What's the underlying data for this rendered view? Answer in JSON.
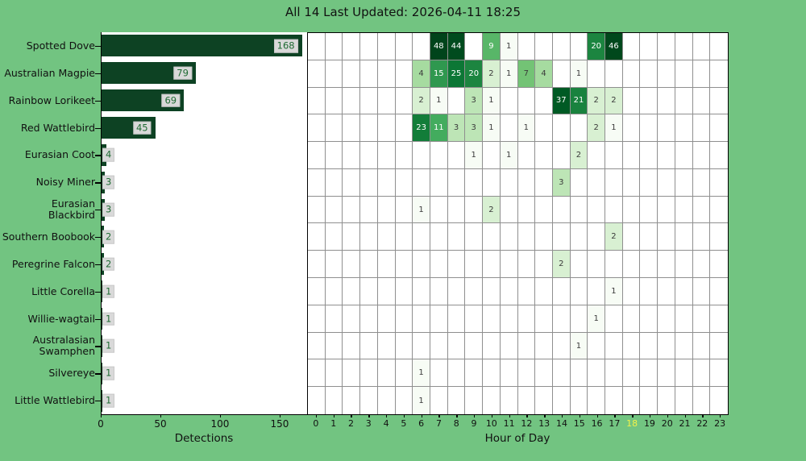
{
  "title": "All 14 Last Updated: 2026-04-11 18:25",
  "colors": {
    "background": "#72c481",
    "bar": "#0d4223",
    "value_label_box": "#d9d9d9",
    "value_label_text": "#1f6b33",
    "grid": "#8f8f8f",
    "frame": "#000000",
    "highlight_hour": "#f2f24a",
    "cell_text_dark": "#3a3a3a",
    "cell_text_light": "#ffffff"
  },
  "chart_data": [
    {
      "id": "detections-bar",
      "type": "bar",
      "orientation": "horizontal",
      "xlabel": "Detections",
      "xticks": [
        0,
        50,
        100,
        150
      ],
      "xlim": [
        0,
        173
      ],
      "categories": [
        "Spotted Dove",
        "Australian Magpie",
        "Rainbow Lorikeet",
        "Red Wattlebird",
        "Eurasian Coot",
        "Noisy Miner",
        "Eurasian\nBlackbird",
        "Southern Boobook",
        "Peregrine Falcon",
        "Little Corella",
        "Willie-wagtail",
        "Australasian\nSwamphen",
        "Silvereye",
        "Little Wattlebird"
      ],
      "values": [
        168,
        79,
        69,
        45,
        4,
        3,
        3,
        2,
        2,
        1,
        1,
        1,
        1,
        1
      ]
    },
    {
      "id": "hourly-heatmap",
      "type": "heatmap",
      "xlabel": "Hour of Day",
      "x": [
        0,
        1,
        2,
        3,
        4,
        5,
        6,
        7,
        8,
        9,
        10,
        11,
        12,
        13,
        14,
        15,
        16,
        17,
        18,
        19,
        20,
        21,
        22,
        23
      ],
      "highlighted_x": 18,
      "colormap": "Greens",
      "norm": "log",
      "vmin": 1,
      "vmax": 48,
      "rows": [
        "Spotted Dove",
        "Australian Magpie",
        "Rainbow Lorikeet",
        "Red Wattlebird",
        "Eurasian Coot",
        "Noisy Miner",
        "Eurasian Blackbird",
        "Southern Boobook",
        "Peregrine Falcon",
        "Little Corella",
        "Willie-wagtail",
        "Australasian Swamphen",
        "Silvereye",
        "Little Wattlebird"
      ],
      "cells": [
        {
          "row": 0,
          "hour": 7,
          "value": 48
        },
        {
          "row": 0,
          "hour": 8,
          "value": 44
        },
        {
          "row": 0,
          "hour": 10,
          "value": 9
        },
        {
          "row": 0,
          "hour": 11,
          "value": 1
        },
        {
          "row": 0,
          "hour": 16,
          "value": 20
        },
        {
          "row": 0,
          "hour": 17,
          "value": 46
        },
        {
          "row": 1,
          "hour": 6,
          "value": 4
        },
        {
          "row": 1,
          "hour": 7,
          "value": 15
        },
        {
          "row": 1,
          "hour": 8,
          "value": 25
        },
        {
          "row": 1,
          "hour": 9,
          "value": 20
        },
        {
          "row": 1,
          "hour": 10,
          "value": 2
        },
        {
          "row": 1,
          "hour": 11,
          "value": 1
        },
        {
          "row": 1,
          "hour": 12,
          "value": 7
        },
        {
          "row": 1,
          "hour": 13,
          "value": 4
        },
        {
          "row": 1,
          "hour": 15,
          "value": 1
        },
        {
          "row": 2,
          "hour": 6,
          "value": 2
        },
        {
          "row": 2,
          "hour": 7,
          "value": 1
        },
        {
          "row": 2,
          "hour": 9,
          "value": 3
        },
        {
          "row": 2,
          "hour": 10,
          "value": 1
        },
        {
          "row": 2,
          "hour": 14,
          "value": 37
        },
        {
          "row": 2,
          "hour": 15,
          "value": 21
        },
        {
          "row": 2,
          "hour": 16,
          "value": 2
        },
        {
          "row": 2,
          "hour": 17,
          "value": 2
        },
        {
          "row": 3,
          "hour": 6,
          "value": 23
        },
        {
          "row": 3,
          "hour": 7,
          "value": 11
        },
        {
          "row": 3,
          "hour": 8,
          "value": 3
        },
        {
          "row": 3,
          "hour": 9,
          "value": 3
        },
        {
          "row": 3,
          "hour": 10,
          "value": 1
        },
        {
          "row": 3,
          "hour": 12,
          "value": 1
        },
        {
          "row": 3,
          "hour": 16,
          "value": 2
        },
        {
          "row": 3,
          "hour": 17,
          "value": 1
        },
        {
          "row": 4,
          "hour": 9,
          "value": 1
        },
        {
          "row": 4,
          "hour": 11,
          "value": 1
        },
        {
          "row": 4,
          "hour": 15,
          "value": 2
        },
        {
          "row": 5,
          "hour": 14,
          "value": 3
        },
        {
          "row": 6,
          "hour": 6,
          "value": 1
        },
        {
          "row": 6,
          "hour": 10,
          "value": 2
        },
        {
          "row": 7,
          "hour": 17,
          "value": 2
        },
        {
          "row": 8,
          "hour": 14,
          "value": 2
        },
        {
          "row": 9,
          "hour": 17,
          "value": 1
        },
        {
          "row": 10,
          "hour": 16,
          "value": 1
        },
        {
          "row": 11,
          "hour": 15,
          "value": 1
        },
        {
          "row": 12,
          "hour": 6,
          "value": 1
        },
        {
          "row": 13,
          "hour": 6,
          "value": 1
        }
      ]
    }
  ]
}
